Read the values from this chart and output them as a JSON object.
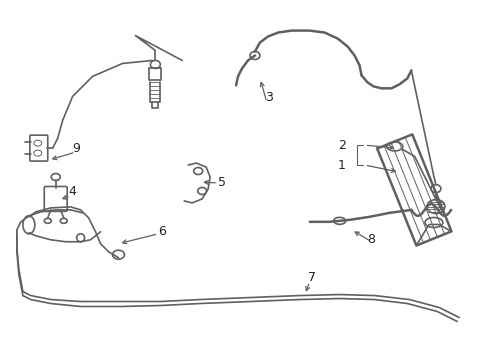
{
  "bg_color": "#ffffff",
  "line_color": "#606060",
  "label_color": "#222222",
  "fig_width": 4.9,
  "fig_height": 3.6,
  "dpi": 100
}
